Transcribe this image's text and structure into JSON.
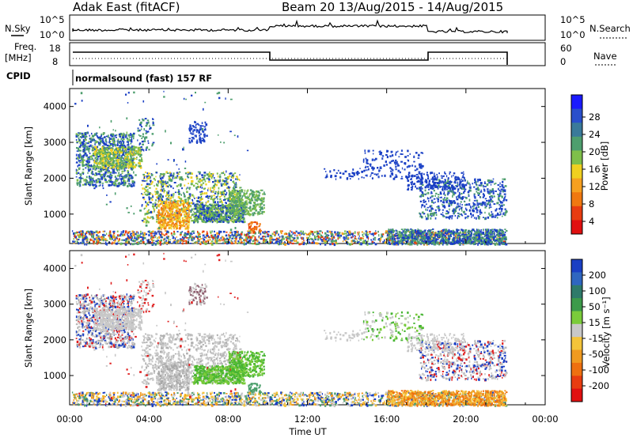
{
  "header": {
    "station": "Adak East (fitACF)",
    "beam_info": "Beam 20  13/Aug/2015 - 14/Aug/2015"
  },
  "noise_panel": {
    "left_label": "N.Sky",
    "right_label": "N.Search",
    "left_ticks": [
      "10^5",
      "10^0"
    ],
    "right_ticks": [
      "10^5",
      "10^0"
    ]
  },
  "freq_panel": {
    "left_label": "Freq.",
    "left_unit": "[MHz]",
    "right_label": "Nave",
    "left_ticks": [
      "18",
      "8"
    ],
    "right_ticks": [
      "60",
      "0"
    ]
  },
  "cpid": {
    "label": "CPID",
    "text": "normalsound (fast) 157 RF"
  },
  "colors": {
    "blue": "#1a3fc4",
    "green": "#4a9e6a",
    "bright_green": "#46b532",
    "orange": "#f08c1e",
    "gray": "#c8c8c8",
    "red": "#e02020"
  },
  "chart_data": [
    {
      "type": "heatmap",
      "name": "power",
      "ylabel": "Slant Range [km]",
      "y_ticks": [
        "1000",
        "2000",
        "3000",
        "4000"
      ],
      "colorbar_label": "Power [dB]",
      "colorbar_ticks": [
        "4",
        "8",
        "12",
        "16",
        "20",
        "24",
        "28"
      ],
      "colorbar_colors": [
        "#1a1aff",
        "#2a4fcc",
        "#3a7a9a",
        "#4e9e6e",
        "#7fbf4a",
        "#f0d020",
        "#f6a020",
        "#f07810",
        "#e83c10",
        "#e01010"
      ],
      "ylim": [
        180,
        4500
      ],
      "xlim_hours": [
        0,
        24
      ]
    },
    {
      "type": "heatmap",
      "name": "velocity",
      "ylabel": "Slant Range [km]",
      "y_ticks": [
        "1000",
        "2000",
        "3000",
        "4000"
      ],
      "colorbar_label": "Velocity [m s⁻¹]",
      "colorbar_ticks": [
        "200",
        "100",
        "50",
        "15",
        "-15",
        "-50",
        "-100",
        "-200"
      ],
      "colorbar_colors": [
        "#1a3fc4",
        "#2f66c0",
        "#2e7a6a",
        "#3c9a4a",
        "#7acb3a",
        "#c8c8c8",
        "#f4c43a",
        "#f09a20",
        "#ee7010",
        "#e83c10",
        "#e01010"
      ],
      "ylim": [
        180,
        4500
      ],
      "xlim_hours": [
        0,
        24
      ]
    }
  ],
  "x_axis": {
    "ticks": [
      "00:00",
      "04:00",
      "08:00",
      "12:00",
      "16:00",
      "20:00",
      "00:00"
    ],
    "label": "Time UT"
  }
}
